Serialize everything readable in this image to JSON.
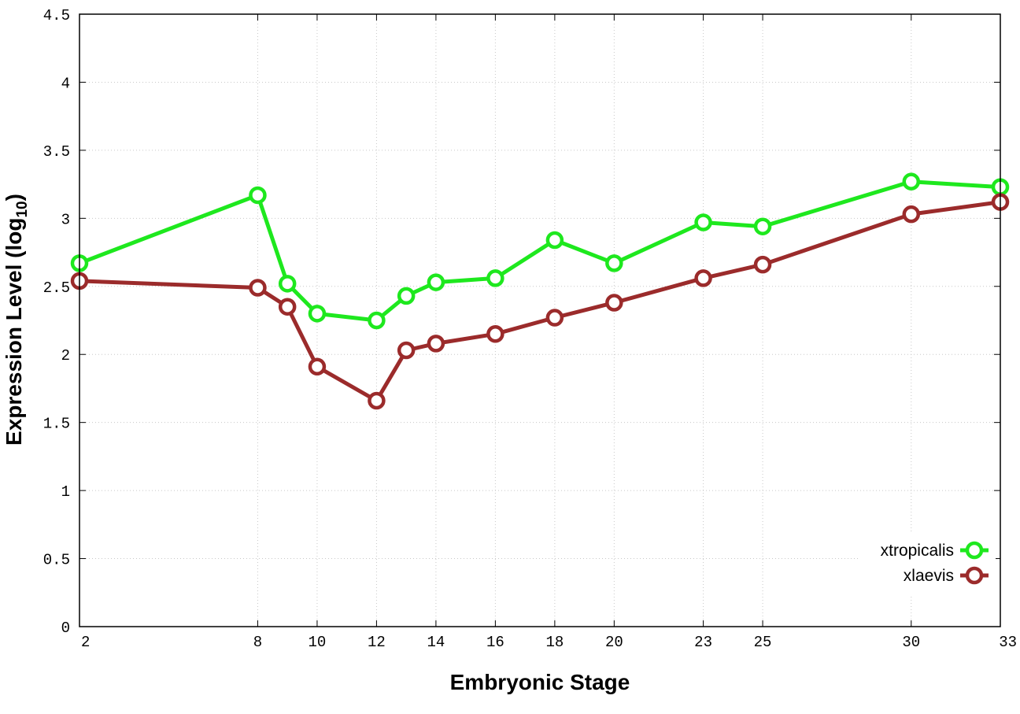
{
  "chart_data": {
    "type": "line",
    "title": "",
    "xlabel": "Embryonic Stage",
    "ylabel": {
      "main": "Expression Level (log",
      "subscript": "10",
      "close": ")"
    },
    "x_ticks": [
      2,
      8,
      10,
      12,
      14,
      16,
      18,
      20,
      23,
      25,
      30,
      33
    ],
    "y_ticks": [
      "0",
      "0.5",
      "1",
      "1.5",
      "2",
      "2.5",
      "3",
      "3.5",
      "4",
      "4.5"
    ],
    "xlim": [
      2,
      33
    ],
    "ylim": [
      0,
      4.5
    ],
    "grid": true,
    "legend_position": "bottom-right",
    "series": [
      {
        "name": "xtropicalis",
        "color": "#1ee81e",
        "x": [
          2,
          8,
          9,
          10,
          12,
          13,
          14,
          16,
          18,
          20,
          23,
          25,
          30,
          33
        ],
        "y": [
          2.67,
          3.17,
          2.52,
          2.3,
          2.25,
          2.43,
          2.53,
          2.56,
          2.84,
          2.67,
          2.97,
          2.94,
          3.27,
          3.23
        ]
      },
      {
        "name": "xlaevis",
        "color": "#9b2b2b",
        "x": [
          2,
          8,
          9,
          10,
          12,
          13,
          14,
          16,
          18,
          20,
          23,
          25,
          30,
          33
        ],
        "y": [
          2.54,
          2.49,
          2.35,
          1.91,
          1.66,
          2.03,
          2.08,
          2.15,
          2.27,
          2.38,
          2.56,
          2.66,
          3.03,
          3.12
        ]
      }
    ]
  }
}
